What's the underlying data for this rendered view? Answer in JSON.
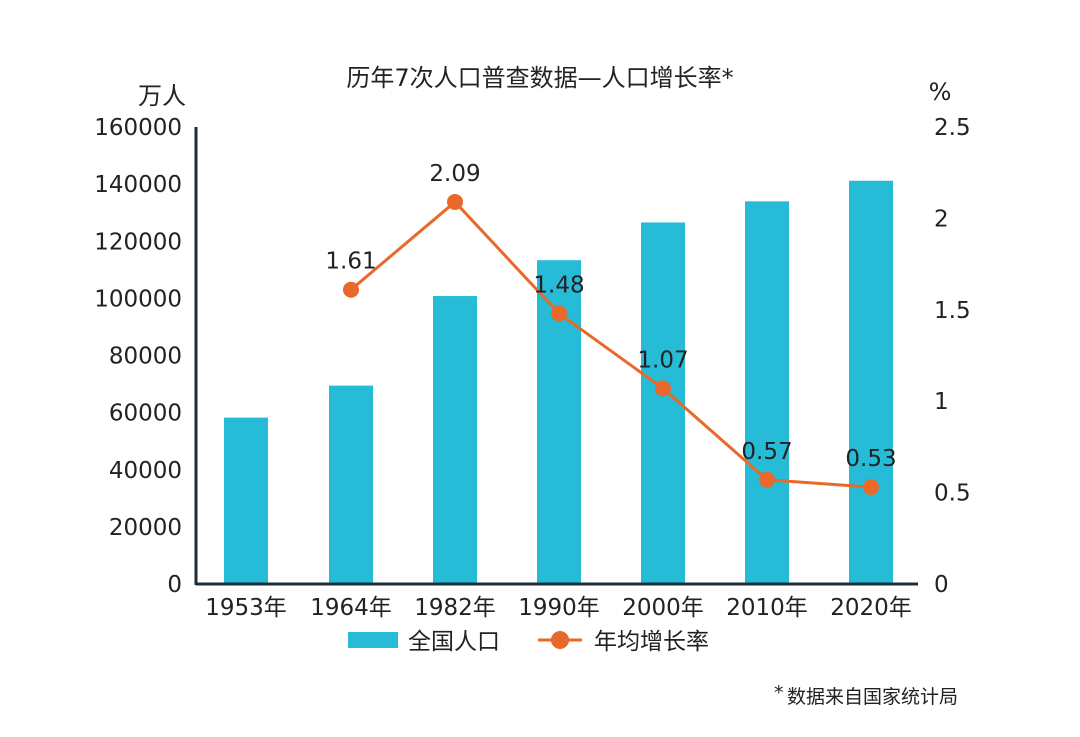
{
  "chart_data": {
    "type": "bar",
    "title": "历年7次人口普查数据—人口增长率*",
    "categories": [
      "1953年",
      "1964年",
      "1982年",
      "1990年",
      "2000年",
      "2010年",
      "2020年"
    ],
    "series": [
      {
        "name": "全国人口",
        "type": "bar",
        "axis": "left",
        "color": "#26BCD7",
        "values": [
          58260,
          69458,
          100818,
          113368,
          126583,
          133972,
          141178
        ]
      },
      {
        "name": "年均增长率",
        "type": "line",
        "axis": "right",
        "color": "#E8692A",
        "values": [
          null,
          1.61,
          2.09,
          1.48,
          1.07,
          0.57,
          0.53
        ],
        "labels": [
          "",
          "1.61",
          "2.09",
          "1.48",
          "1.07",
          "0.57",
          "0.53"
        ]
      }
    ],
    "ylabel": "万人",
    "y2label": "%",
    "ylim": [
      0,
      160000
    ],
    "y2lim": [
      0,
      2.5
    ],
    "yticks": [
      "0",
      "20000",
      "40000",
      "60000",
      "80000",
      "100000",
      "120000",
      "140000",
      "160000"
    ],
    "y2ticks": [
      "0",
      "0.5",
      "1",
      "1.5",
      "2",
      "2.5"
    ],
    "grid": false,
    "legend_position": "bottom"
  },
  "source_mark": "*",
  "source_text": "数据来自国家统计局"
}
